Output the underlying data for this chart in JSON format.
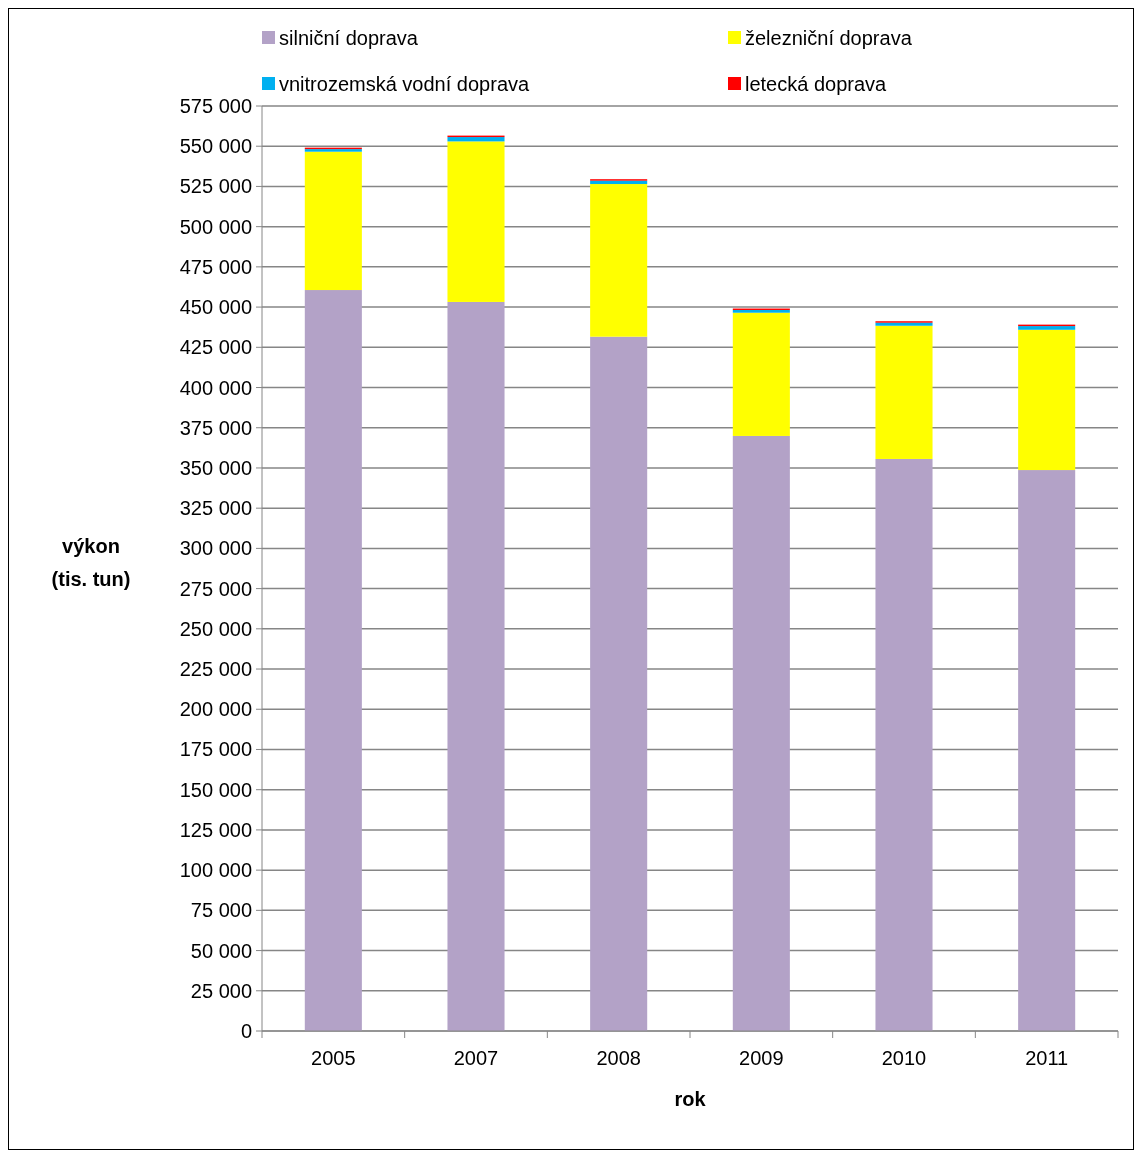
{
  "chart_data": {
    "type": "bar",
    "stacked": true,
    "xlabel": "rok",
    "ylabel": "výkon\n(tis. tun)",
    "categories": [
      "2005",
      "2007",
      "2008",
      "2009",
      "2010",
      "2011"
    ],
    "series": [
      {
        "name": "silniční doprava",
        "color": "#b3a2c7",
        "values": [
          460600,
          453200,
          431600,
          369900,
          355600,
          348700
        ]
      },
      {
        "name": "železniční doprava",
        "color": "#ffff00",
        "values": [
          86000,
          99800,
          94900,
          76600,
          82800,
          87200
        ]
      },
      {
        "name": "vnitrozemská vodní doprava",
        "color": "#00b0f0",
        "values": [
          1600,
          2700,
          2100,
          1700,
          1900,
          2300
        ]
      },
      {
        "name": "letecká doprava",
        "color": "#ff0000",
        "values": [
          900,
          900,
          900,
          900,
          900,
          900
        ]
      }
    ],
    "ylim": [
      0,
      575000
    ],
    "yticks": [
      {
        "value": 0,
        "label": "0"
      },
      {
        "value": 25000,
        "label": "25 000"
      },
      {
        "value": 50000,
        "label": "50 000"
      },
      {
        "value": 75000,
        "label": "75 000"
      },
      {
        "value": 100000,
        "label": "100 000"
      },
      {
        "value": 125000,
        "label": "125 000"
      },
      {
        "value": 150000,
        "label": "150 000"
      },
      {
        "value": 175000,
        "label": "175 000"
      },
      {
        "value": 200000,
        "label": "200 000"
      },
      {
        "value": 225000,
        "label": "225 000"
      },
      {
        "value": 250000,
        "label": "250 000"
      },
      {
        "value": 275000,
        "label": "275 000"
      },
      {
        "value": 300000,
        "label": "300 000"
      },
      {
        "value": 325000,
        "label": "325 000"
      },
      {
        "value": 350000,
        "label": "350 000"
      },
      {
        "value": 375000,
        "label": "375 000"
      },
      {
        "value": 400000,
        "label": "400 000"
      },
      {
        "value": 425000,
        "label": "425 000"
      },
      {
        "value": 450000,
        "label": "450 000"
      },
      {
        "value": 475000,
        "label": "475 000"
      },
      {
        "value": 500000,
        "label": "500 000"
      },
      {
        "value": 525000,
        "label": "525 000"
      },
      {
        "value": 550000,
        "label": "550 000"
      },
      {
        "value": 575000,
        "label": "575 000"
      }
    ],
    "grid": "y",
    "legend": "top"
  }
}
